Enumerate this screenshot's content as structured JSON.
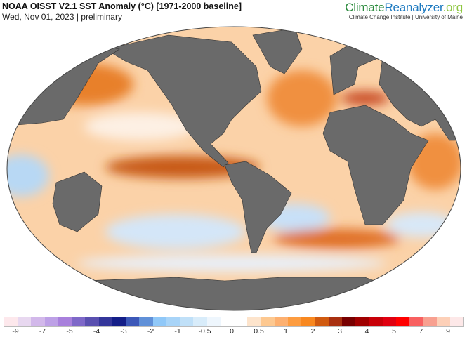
{
  "header": {
    "title": "NOAA OISST V2.1 SST Anomaly (°C) [1971-2000 baseline]",
    "subtitle": "Wed, Nov 01, 2023 | preliminary"
  },
  "logo": {
    "part1": "Climate",
    "part2": "Reanalyzer",
    ".org": ".org",
    "tagline": "Climate Change Institute | University of Maine"
  },
  "colorbar": {
    "labels": [
      "-9",
      "-7",
      "-5",
      "-4",
      "-3",
      "-2",
      "-1",
      "-0.5",
      "0",
      "0.5",
      "1",
      "2",
      "3",
      "4",
      "5",
      "7",
      "9"
    ],
    "colors": [
      "#fde8ec",
      "#e8d8f0",
      "#d2b8ea",
      "#bda0e6",
      "#a880dc",
      "#7e68c8",
      "#5a50b0",
      "#34369a",
      "#141e88",
      "#3c58b8",
      "#6090d8",
      "#90c8f8",
      "#a8d4f8",
      "#c0e0f8",
      "#d8ecfa",
      "#eef6fd",
      "#ffffff",
      "#fde4cc",
      "#fdc890",
      "#fdb070",
      "#fd9c40",
      "#f88820",
      "#d05a10",
      "#a83010",
      "#780000",
      "#a00000",
      "#c80008",
      "#e00010",
      "#ff0000",
      "#f86060",
      "#f8a090",
      "#fdd0b8",
      "#fde8e8"
    ]
  },
  "map": {
    "land_color": "#6a6a6a",
    "ocean_base": "#fbd2a8"
  }
}
